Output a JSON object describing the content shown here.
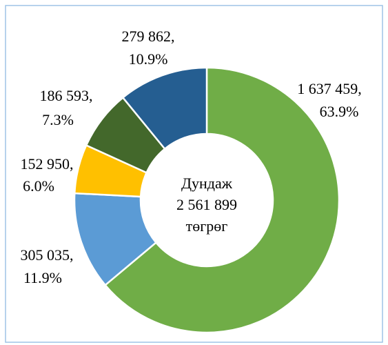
{
  "chart_data": {
    "type": "donut",
    "categories": [
      "1 637 459",
      "305 035",
      "152 950",
      "186 593",
      "279 862"
    ],
    "values": [
      1637459,
      305035,
      152950,
      186593,
      279862
    ],
    "value_labels": [
      "1 637 459,",
      "305 035,",
      "152 950,",
      "186 593,",
      "279 862,"
    ],
    "percents": [
      63.9,
      11.9,
      6.0,
      7.3,
      10.9
    ],
    "percent_labels": [
      "63.9%",
      "11.9%",
      "6.0%",
      "7.3%",
      "10.9%"
    ],
    "colors": [
      "#70ad47",
      "#5b9bd5",
      "#ffc000",
      "#43682b",
      "#255e91"
    ],
    "center_label": [
      "Дундаж",
      "2 561 899",
      "төгрөг"
    ]
  }
}
